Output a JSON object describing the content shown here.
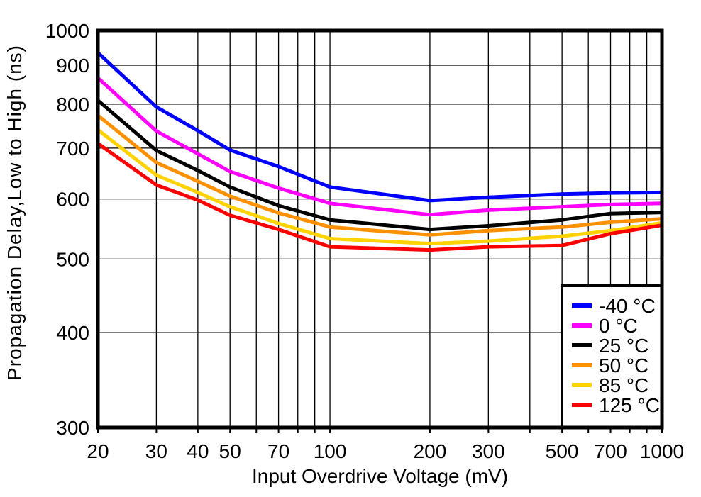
{
  "chart_data": {
    "type": "line",
    "title": "",
    "xlabel": "Input Overdrive Voltage (mV)",
    "ylabel": "Propagation Delay,Low to High (ns)",
    "xscale": "log",
    "yscale": "log",
    "xlim": [
      20,
      1000
    ],
    "ylim": [
      300,
      1000
    ],
    "x_tick_labels": [
      20,
      30,
      40,
      50,
      70,
      100,
      200,
      300,
      500,
      700,
      1000
    ],
    "x_gridlines": [
      20,
      30,
      40,
      50,
      60,
      70,
      80,
      90,
      100,
      200,
      300,
      400,
      500,
      600,
      700,
      800,
      900,
      1000
    ],
    "y_tick_labels": [
      300,
      400,
      500,
      600,
      700,
      800,
      900,
      1000
    ],
    "y_gridlines": [
      300,
      400,
      500,
      600,
      700,
      800,
      900,
      1000
    ],
    "grid": true,
    "legend_position": "bottom-right",
    "x": [
      20,
      30,
      40,
      50,
      70,
      100,
      200,
      300,
      500,
      700,
      1000
    ],
    "series": [
      {
        "name": "-40 °C",
        "color": "#0000FF",
        "values": [
          935,
          793,
          738,
          696,
          662,
          622,
          597,
          603,
          609,
          611,
          612
        ]
      },
      {
        "name": "0 °C",
        "color": "#FF00FF",
        "values": [
          866,
          737,
          688,
          652,
          620,
          592,
          572,
          580,
          586,
          590,
          592
        ]
      },
      {
        "name": "25 °C",
        "color": "#000000",
        "values": [
          809,
          695,
          654,
          622,
          588,
          563,
          547,
          553,
          563,
          574,
          576
        ]
      },
      {
        "name": "50 °C",
        "color": "#FF9100",
        "values": [
          773,
          670,
          633,
          605,
          575,
          551,
          538,
          545,
          551,
          559,
          565
        ]
      },
      {
        "name": "85 °C",
        "color": "#FFD200",
        "values": [
          740,
          645,
          612,
          586,
          557,
          532,
          524,
          528,
          536,
          545,
          558
        ]
      },
      {
        "name": "125 °C",
        "color": "#FF0000",
        "values": [
          710,
          626,
          598,
          571,
          547,
          519,
          514,
          519,
          521,
          540,
          554
        ]
      }
    ],
    "axis_color": "#000000",
    "background_color": "#FFFFFF"
  }
}
